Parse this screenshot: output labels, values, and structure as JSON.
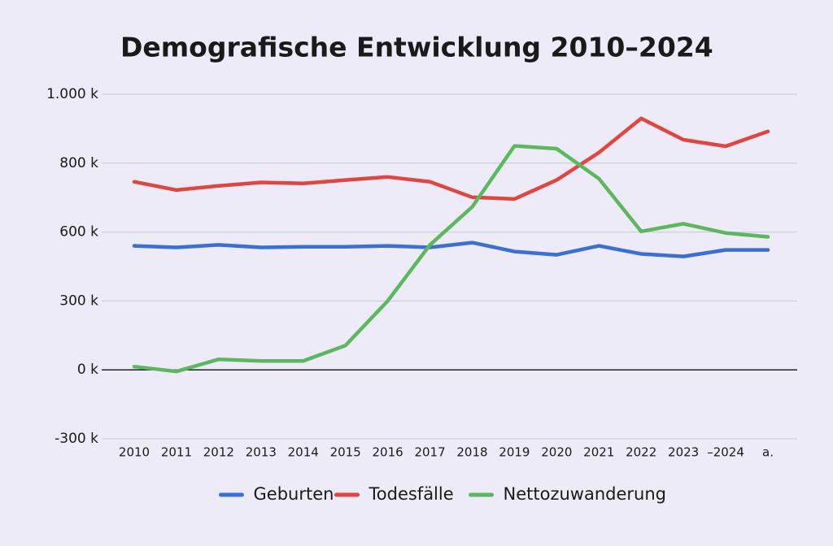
{
  "chart_data": {
    "type": "line",
    "title": "Demografische Entwicklung 2010–2024",
    "categories": [
      "2010",
      "2011",
      "2012",
      "2013",
      "2014",
      "2015",
      "2016",
      "2017",
      "2018",
      "2019",
      "2020",
      "2021",
      "2022",
      "2023",
      "–2024",
      "a."
    ],
    "series": [
      {
        "name": "Geburten",
        "color": "#3a6fd6",
        "values": [
          540,
          533,
          544,
          533,
          536,
          536,
          540,
          533,
          554,
          515,
          501,
          540,
          505,
          494,
          522,
          522
        ]
      },
      {
        "name": "Todesfälle",
        "color": "#e2453d",
        "values": [
          746,
          722,
          734,
          744,
          741,
          751,
          760,
          746,
          701,
          696,
          751,
          831,
          930,
          868,
          849,
          892
        ]
      },
      {
        "name": "Nettozuwanderung",
        "color": "#5cb85f",
        "values": [
          14,
          -7,
          46,
          39,
          39,
          106,
          300,
          544,
          673,
          850,
          842,
          755,
          602,
          624,
          596,
          579
        ]
      }
    ],
    "ylim": [
      -300,
      1000
    ],
    "yticks": [
      {
        "value": -300,
        "label": "-300 k"
      },
      {
        "value": 0,
        "label": "0 k"
      },
      {
        "value": 300,
        "label": "300 k"
      },
      {
        "value": 600,
        "label": "600 k"
      },
      {
        "value": 800,
        "label": "800 k"
      },
      {
        "value": 1000,
        "label": "1.000 k"
      }
    ],
    "grid": true,
    "legend": "bottom"
  }
}
